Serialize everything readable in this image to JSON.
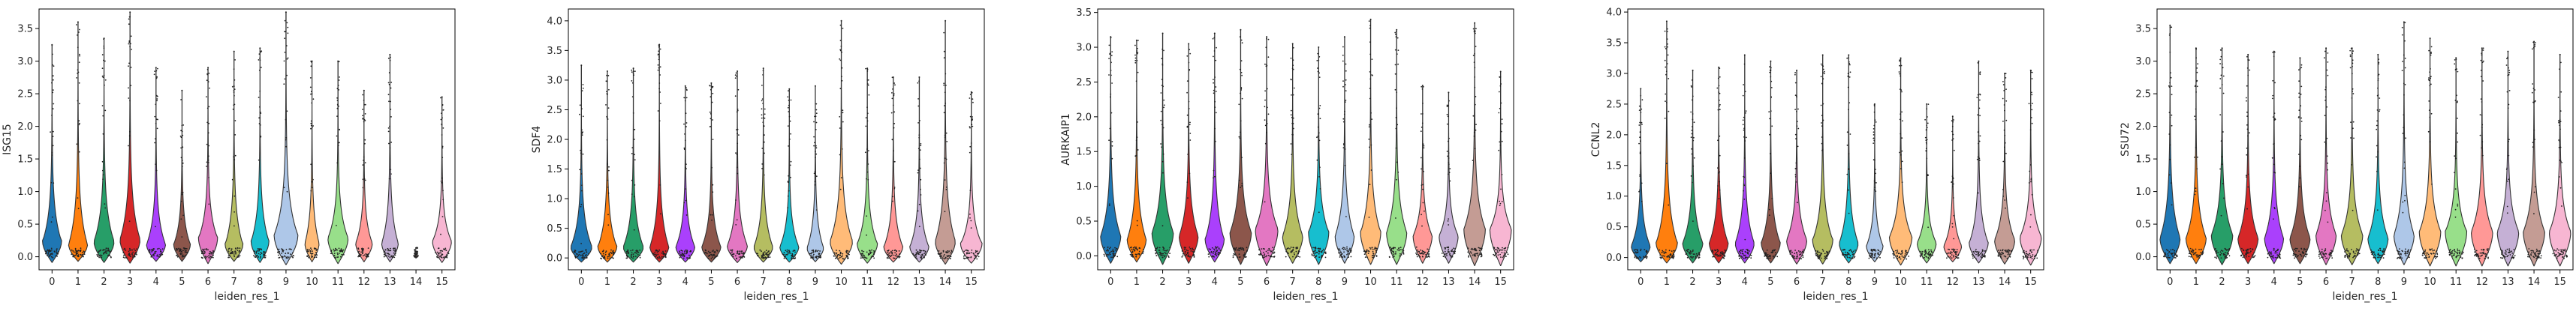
{
  "chart_data": [
    {
      "type": "violin",
      "xlabel": "leiden_res_1",
      "ylabel": "ISG15",
      "ylim": [
        -0.2,
        3.8
      ],
      "yticks": [
        0.0,
        0.5,
        1.0,
        1.5,
        2.0,
        2.5,
        3.0,
        3.5
      ],
      "categories": [
        "0",
        "1",
        "2",
        "3",
        "4",
        "5",
        "6",
        "7",
        "8",
        "9",
        "10",
        "11",
        "12",
        "13",
        "14",
        "15"
      ],
      "width_scale": [
        0.8,
        0.8,
        0.85,
        0.85,
        0.8,
        0.7,
        0.8,
        0.75,
        0.75,
        1.0,
        0.6,
        0.85,
        0.7,
        0.7,
        0.2,
        0.8
      ],
      "max": [
        3.25,
        3.6,
        3.35,
        3.75,
        2.9,
        2.55,
        2.9,
        3.15,
        3.2,
        3.75,
        3.0,
        3.0,
        2.55,
        3.1,
        0.05,
        2.45
      ],
      "peak": [
        0.25,
        0.2,
        0.25,
        0.28,
        0.2,
        0.2,
        0.3,
        0.2,
        0.25,
        0.35,
        0.22,
        0.3,
        0.22,
        0.22,
        0.02,
        0.25
      ]
    },
    {
      "type": "violin",
      "xlabel": "leiden_res_1",
      "ylabel": "SDF4",
      "ylim": [
        -0.2,
        4.2
      ],
      "yticks": [
        0.0,
        0.5,
        1.0,
        1.5,
        2.0,
        2.5,
        3.0,
        3.5,
        4.0
      ],
      "categories": [
        "0",
        "1",
        "2",
        "3",
        "4",
        "5",
        "6",
        "7",
        "8",
        "9",
        "10",
        "11",
        "12",
        "13",
        "14",
        "15"
      ],
      "width_scale": [
        0.9,
        0.8,
        0.85,
        0.8,
        0.8,
        0.8,
        0.85,
        0.8,
        0.8,
        0.7,
        0.95,
        0.85,
        0.8,
        0.8,
        0.85,
        0.9
      ],
      "max": [
        3.25,
        3.15,
        3.2,
        3.6,
        2.9,
        2.95,
        3.15,
        3.2,
        2.85,
        2.9,
        4.0,
        3.2,
        3.05,
        3.05,
        4.0,
        2.8
      ],
      "peak": [
        0.2,
        0.2,
        0.2,
        0.2,
        0.2,
        0.2,
        0.22,
        0.2,
        0.2,
        0.18,
        0.3,
        0.25,
        0.2,
        0.2,
        0.3,
        0.25
      ]
    },
    {
      "type": "violin",
      "xlabel": "leiden_res_1",
      "ylabel": "AURKAIP1",
      "ylim": [
        -0.2,
        3.55
      ],
      "yticks": [
        0.0,
        0.5,
        1.0,
        1.5,
        2.0,
        2.5,
        3.0,
        3.5
      ],
      "categories": [
        "0",
        "1",
        "2",
        "3",
        "4",
        "5",
        "6",
        "7",
        "8",
        "9",
        "10",
        "11",
        "12",
        "13",
        "14",
        "15"
      ],
      "width_scale": [
        0.85,
        0.8,
        0.9,
        0.8,
        0.8,
        0.9,
        0.95,
        0.85,
        0.85,
        0.8,
        0.85,
        0.85,
        0.8,
        0.8,
        0.9,
        0.9
      ],
      "max": [
        3.15,
        3.1,
        3.2,
        3.05,
        3.2,
        3.25,
        3.15,
        3.05,
        3.0,
        3.15,
        3.4,
        3.25,
        2.45,
        2.35,
        3.35,
        2.65
      ],
      "peak": [
        0.3,
        0.25,
        0.35,
        0.3,
        0.25,
        0.35,
        0.4,
        0.3,
        0.35,
        0.3,
        0.35,
        0.35,
        0.3,
        0.3,
        0.4,
        0.4
      ]
    },
    {
      "type": "violin",
      "xlabel": "leiden_res_1",
      "ylabel": "CCNL2",
      "ylim": [
        -0.2,
        4.05
      ],
      "yticks": [
        0.0,
        0.5,
        1.0,
        1.5,
        2.0,
        2.5,
        3.0,
        3.5,
        4.0
      ],
      "categories": [
        "0",
        "1",
        "2",
        "3",
        "4",
        "5",
        "6",
        "7",
        "8",
        "9",
        "10",
        "11",
        "12",
        "13",
        "14",
        "15"
      ],
      "width_scale": [
        0.8,
        0.9,
        0.85,
        0.8,
        0.8,
        0.8,
        0.85,
        0.85,
        0.8,
        0.7,
        0.95,
        0.8,
        0.75,
        0.8,
        0.85,
        0.9
      ],
      "max": [
        2.75,
        3.85,
        3.05,
        3.1,
        3.3,
        3.2,
        3.05,
        3.3,
        3.3,
        2.5,
        3.25,
        2.5,
        2.3,
        3.2,
        3.0,
        3.05
      ],
      "peak": [
        0.2,
        0.25,
        0.25,
        0.25,
        0.25,
        0.25,
        0.3,
        0.3,
        0.25,
        0.2,
        0.35,
        0.25,
        0.2,
        0.25,
        0.3,
        0.35
      ]
    },
    {
      "type": "violin",
      "xlabel": "leiden_res_1",
      "ylabel": "SSU72",
      "ylim": [
        -0.2,
        3.8
      ],
      "yticks": [
        0.0,
        0.5,
        1.0,
        1.5,
        2.0,
        2.5,
        3.0,
        3.5
      ],
      "categories": [
        "0",
        "1",
        "2",
        "3",
        "4",
        "5",
        "6",
        "7",
        "8",
        "9",
        "10",
        "11",
        "12",
        "13",
        "14",
        "15"
      ],
      "width_scale": [
        0.85,
        0.85,
        0.9,
        0.85,
        0.8,
        0.85,
        0.85,
        0.9,
        0.85,
        0.85,
        0.9,
        0.9,
        0.9,
        0.9,
        0.9,
        0.9
      ],
      "max": [
        3.55,
        3.2,
        3.2,
        3.1,
        3.15,
        3.05,
        3.2,
        3.2,
        3.1,
        3.6,
        3.35,
        3.05,
        3.2,
        3.15,
        3.3,
        3.1
      ],
      "peak": [
        0.3,
        0.3,
        0.35,
        0.3,
        0.3,
        0.3,
        0.35,
        0.35,
        0.3,
        0.35,
        0.4,
        0.4,
        0.4,
        0.4,
        0.4,
        0.4
      ]
    }
  ],
  "palette": [
    "#1f77b4",
    "#ff7f0e",
    "#279e68",
    "#d62728",
    "#aa40fc",
    "#8c564b",
    "#e377c2",
    "#b5bd61",
    "#17becf",
    "#aec7e8",
    "#ffbb78",
    "#98df8a",
    "#ff9896",
    "#c5b0d5",
    "#c49c94",
    "#f7b6d2"
  ]
}
